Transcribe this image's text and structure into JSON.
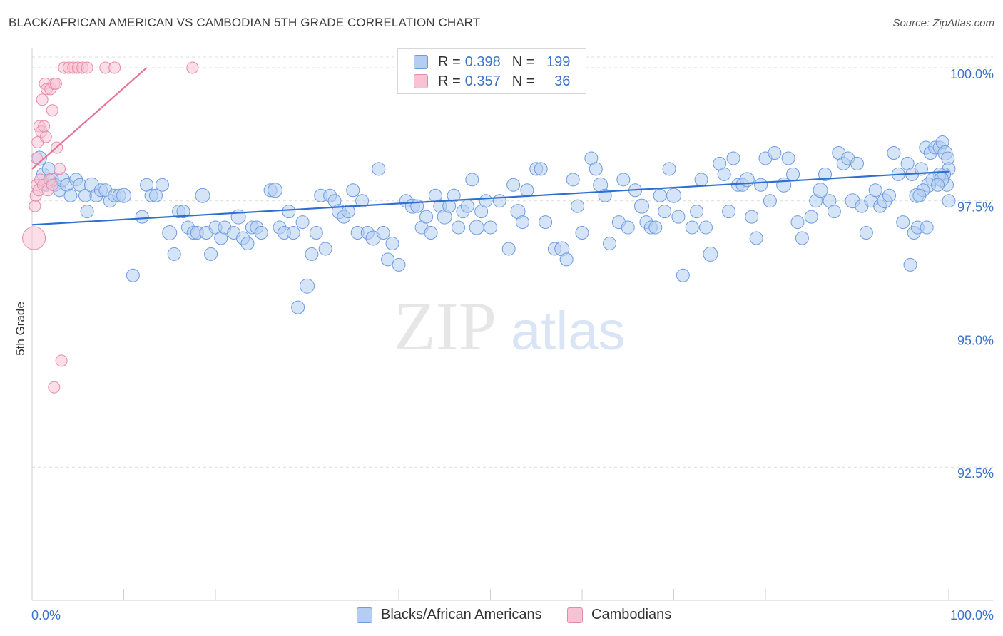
{
  "header": {
    "title": "BLACK/AFRICAN AMERICAN VS CAMBODIAN 5TH GRADE CORRELATION CHART",
    "source": "Source: ZipAtlas.com"
  },
  "legend_top": {
    "rows": [
      {
        "r_label": "R =",
        "r_value": "0.398",
        "n_label": "N =",
        "n_value": "199"
      },
      {
        "r_label": "R =",
        "r_value": "0.357",
        "n_label": "N =",
        "n_value": "36"
      }
    ]
  },
  "legend_bottom": {
    "items": [
      "Blacks/African Americans",
      "Cambodians"
    ]
  },
  "watermark": {
    "zip": "ZIP",
    "atlas": "atlas"
  },
  "colors": {
    "blue_fill": "#b4cdf3",
    "blue_stroke": "#6c9be0",
    "blue_line": "#2f6fd0",
    "pink_fill": "#f7c3d4",
    "pink_stroke": "#e58aa8",
    "pink_line": "#e8739a",
    "axis_label": "#3b73c9",
    "grid": "#dcdcdc"
  },
  "chart_data": {
    "type": "scatter",
    "title": "BLACK/AFRICAN AMERICAN VS CAMBODIAN 5TH GRADE CORRELATION CHART",
    "xlabel": "",
    "ylabel": "5th Grade",
    "xlim": [
      0,
      100
    ],
    "ylim": [
      90.0,
      100.2
    ],
    "x_tick_labels": [
      "0.0%",
      "100.0%"
    ],
    "y_ticks": [
      92.5,
      95.0,
      97.5,
      100.0
    ],
    "y_tick_labels": [
      "92.5%",
      "95.0%",
      "97.5%",
      "100.0%"
    ],
    "grid": "horizontal dashed",
    "legend_placement": "bottom",
    "series": [
      {
        "name": "Blacks/African Americans",
        "R": 0.398,
        "N": 199,
        "trend": {
          "x": [
            0,
            100
          ],
          "y": [
            97.05,
            98.05
          ]
        },
        "points": [
          [
            0.8,
            98.3
          ],
          [
            1.2,
            98.0
          ],
          [
            1.5,
            97.8
          ],
          [
            1.8,
            98.1
          ],
          [
            2.2,
            97.9
          ],
          [
            2.5,
            97.8
          ],
          [
            3.0,
            97.7
          ],
          [
            3.3,
            97.9
          ],
          [
            3.8,
            97.8
          ],
          [
            4.2,
            97.6
          ],
          [
            4.8,
            97.9
          ],
          [
            5.2,
            97.8
          ],
          [
            5.8,
            97.6
          ],
          [
            6.0,
            97.3
          ],
          [
            6.5,
            97.8
          ],
          [
            7.0,
            97.6
          ],
          [
            7.5,
            97.7
          ],
          [
            8.0,
            97.7
          ],
          [
            8.5,
            97.5
          ],
          [
            9.0,
            97.6
          ],
          [
            9.5,
            97.6
          ],
          [
            10.0,
            97.6
          ],
          [
            11.0,
            96.1
          ],
          [
            12.0,
            97.2
          ],
          [
            12.5,
            97.8
          ],
          [
            13.0,
            97.6
          ],
          [
            13.5,
            97.6
          ],
          [
            14.2,
            97.8
          ],
          [
            15.0,
            96.9
          ],
          [
            15.5,
            96.5
          ],
          [
            16.0,
            97.3
          ],
          [
            16.5,
            97.3
          ],
          [
            17.0,
            97.0
          ],
          [
            17.6,
            96.9
          ],
          [
            18.0,
            96.9
          ],
          [
            18.6,
            97.6
          ],
          [
            19.0,
            96.9
          ],
          [
            19.5,
            96.5
          ],
          [
            20.0,
            97.0
          ],
          [
            20.6,
            96.8
          ],
          [
            21.0,
            97.0
          ],
          [
            22.0,
            96.9
          ],
          [
            22.5,
            97.2
          ],
          [
            23.0,
            96.8
          ],
          [
            23.5,
            96.7
          ],
          [
            24.0,
            97.0
          ],
          [
            24.5,
            97.0
          ],
          [
            25.0,
            96.9
          ],
          [
            26.0,
            97.7
          ],
          [
            26.5,
            97.7
          ],
          [
            27.0,
            97.0
          ],
          [
            27.5,
            96.9
          ],
          [
            28.0,
            97.3
          ],
          [
            28.5,
            96.9
          ],
          [
            29.0,
            95.5
          ],
          [
            29.5,
            97.1
          ],
          [
            30.0,
            95.9
          ],
          [
            30.5,
            96.5
          ],
          [
            31.0,
            96.9
          ],
          [
            31.5,
            97.6
          ],
          [
            32.0,
            96.6
          ],
          [
            32.5,
            97.6
          ],
          [
            33.0,
            97.5
          ],
          [
            33.5,
            97.3
          ],
          [
            34.0,
            97.2
          ],
          [
            34.5,
            97.3
          ],
          [
            35.0,
            97.7
          ],
          [
            35.5,
            96.9
          ],
          [
            36.0,
            97.5
          ],
          [
            36.6,
            96.9
          ],
          [
            37.2,
            96.8
          ],
          [
            37.8,
            98.1
          ],
          [
            38.3,
            96.9
          ],
          [
            38.8,
            96.4
          ],
          [
            39.3,
            96.7
          ],
          [
            40.0,
            96.3
          ],
          [
            40.8,
            97.5
          ],
          [
            41.5,
            97.4
          ],
          [
            42.0,
            97.4
          ],
          [
            42.5,
            97.0
          ],
          [
            43.0,
            97.2
          ],
          [
            43.5,
            96.9
          ],
          [
            44.0,
            97.6
          ],
          [
            44.5,
            97.4
          ],
          [
            45.0,
            97.2
          ],
          [
            45.5,
            97.4
          ],
          [
            46.0,
            97.6
          ],
          [
            46.5,
            97.0
          ],
          [
            47.0,
            97.3
          ],
          [
            47.5,
            97.4
          ],
          [
            48.0,
            97.9
          ],
          [
            48.5,
            97.0
          ],
          [
            49.0,
            97.3
          ],
          [
            49.5,
            97.5
          ],
          [
            50.0,
            97.0
          ],
          [
            51.0,
            97.5
          ],
          [
            52.0,
            96.6
          ],
          [
            52.5,
            97.8
          ],
          [
            53.0,
            97.3
          ],
          [
            53.5,
            97.1
          ],
          [
            54.0,
            97.7
          ],
          [
            55.0,
            98.1
          ],
          [
            55.5,
            98.1
          ],
          [
            56.0,
            97.1
          ],
          [
            57.0,
            96.6
          ],
          [
            57.8,
            96.6
          ],
          [
            58.3,
            96.4
          ],
          [
            59.0,
            97.9
          ],
          [
            59.5,
            97.4
          ],
          [
            60.0,
            96.9
          ],
          [
            61.0,
            98.3
          ],
          [
            61.5,
            98.1
          ],
          [
            62.0,
            97.8
          ],
          [
            62.5,
            97.6
          ],
          [
            63.0,
            96.7
          ],
          [
            64.0,
            97.1
          ],
          [
            64.5,
            97.9
          ],
          [
            65.0,
            97.0
          ],
          [
            65.8,
            97.7
          ],
          [
            66.5,
            97.4
          ],
          [
            67.0,
            97.1
          ],
          [
            67.5,
            97.0
          ],
          [
            68.0,
            97.0
          ],
          [
            68.5,
            97.6
          ],
          [
            69.0,
            97.3
          ],
          [
            69.5,
            98.1
          ],
          [
            70.0,
            97.6
          ],
          [
            70.5,
            97.2
          ],
          [
            71.0,
            96.1
          ],
          [
            72.0,
            97.0
          ],
          [
            72.5,
            97.3
          ],
          [
            73.0,
            97.9
          ],
          [
            73.5,
            97.0
          ],
          [
            74.0,
            96.5
          ],
          [
            75.0,
            98.2
          ],
          [
            75.5,
            98.0
          ],
          [
            76.0,
            97.3
          ],
          [
            76.5,
            98.3
          ],
          [
            77.0,
            97.8
          ],
          [
            77.5,
            97.8
          ],
          [
            78.0,
            97.9
          ],
          [
            78.5,
            97.2
          ],
          [
            79.0,
            96.8
          ],
          [
            79.5,
            97.8
          ],
          [
            80.0,
            98.3
          ],
          [
            80.5,
            97.5
          ],
          [
            81.0,
            98.4
          ],
          [
            82.0,
            97.8
          ],
          [
            82.5,
            98.3
          ],
          [
            83.0,
            98.0
          ],
          [
            83.5,
            97.1
          ],
          [
            84.0,
            96.8
          ],
          [
            85.0,
            97.2
          ],
          [
            85.5,
            97.5
          ],
          [
            86.0,
            97.7
          ],
          [
            86.5,
            98.0
          ],
          [
            87.0,
            97.5
          ],
          [
            87.5,
            97.3
          ],
          [
            88.0,
            98.4
          ],
          [
            88.5,
            98.2
          ],
          [
            89.0,
            98.3
          ],
          [
            89.5,
            97.5
          ],
          [
            90.0,
            98.2
          ],
          [
            90.5,
            97.4
          ],
          [
            91.0,
            96.9
          ],
          [
            91.5,
            97.5
          ],
          [
            92.0,
            97.7
          ],
          [
            92.5,
            97.4
          ],
          [
            93.0,
            97.5
          ],
          [
            93.5,
            97.6
          ],
          [
            94.0,
            98.4
          ],
          [
            94.5,
            98.0
          ],
          [
            95.0,
            97.1
          ],
          [
            95.5,
            98.2
          ],
          [
            96.0,
            98.0
          ],
          [
            96.5,
            97.6
          ],
          [
            97.0,
            98.1
          ],
          [
            97.5,
            98.5
          ],
          [
            98.0,
            98.4
          ],
          [
            98.5,
            98.5
          ],
          [
            99.0,
            98.5
          ],
          [
            99.3,
            98.6
          ],
          [
            99.6,
            98.4
          ],
          [
            99.9,
            98.3
          ],
          [
            100.0,
            98.1
          ],
          [
            99.5,
            98.0
          ],
          [
            99.8,
            97.8
          ],
          [
            99.0,
            98.0
          ],
          [
            98.2,
            97.9
          ],
          [
            97.8,
            97.8
          ],
          [
            97.2,
            97.7
          ],
          [
            96.8,
            97.6
          ],
          [
            96.2,
            96.9
          ],
          [
            96.6,
            97.0
          ],
          [
            95.8,
            96.3
          ],
          [
            100.0,
            97.5
          ],
          [
            99.2,
            97.9
          ],
          [
            98.8,
            97.8
          ],
          [
            97.6,
            97.0
          ]
        ]
      },
      {
        "name": "Cambodians",
        "R": 0.357,
        "N": 36,
        "trend": {
          "x": [
            0,
            12.5
          ],
          "y": [
            98.1,
            100.0
          ]
        },
        "points": [
          [
            0.2,
            96.8
          ],
          [
            0.3,
            97.4
          ],
          [
            0.4,
            97.6
          ],
          [
            0.5,
            97.8
          ],
          [
            0.5,
            98.3
          ],
          [
            0.6,
            98.6
          ],
          [
            0.7,
            97.7
          ],
          [
            0.8,
            98.9
          ],
          [
            0.9,
            97.9
          ],
          [
            1.0,
            98.8
          ],
          [
            1.1,
            99.4
          ],
          [
            1.2,
            97.8
          ],
          [
            1.3,
            98.9
          ],
          [
            1.4,
            99.7
          ],
          [
            1.5,
            98.7
          ],
          [
            1.6,
            99.6
          ],
          [
            1.7,
            97.7
          ],
          [
            1.9,
            97.9
          ],
          [
            2.0,
            99.6
          ],
          [
            2.2,
            99.2
          ],
          [
            2.4,
            99.7
          ],
          [
            2.6,
            99.7
          ],
          [
            2.7,
            98.5
          ],
          [
            3.0,
            98.1
          ],
          [
            3.2,
            94.5
          ],
          [
            2.4,
            94.0
          ],
          [
            3.5,
            100.0
          ],
          [
            4.0,
            100.0
          ],
          [
            4.5,
            100.0
          ],
          [
            5.0,
            100.0
          ],
          [
            5.5,
            100.0
          ],
          [
            6.0,
            100.0
          ],
          [
            8.0,
            100.0
          ],
          [
            9.0,
            100.0
          ],
          [
            17.5,
            100.0
          ],
          [
            2.2,
            97.8
          ]
        ]
      }
    ]
  }
}
